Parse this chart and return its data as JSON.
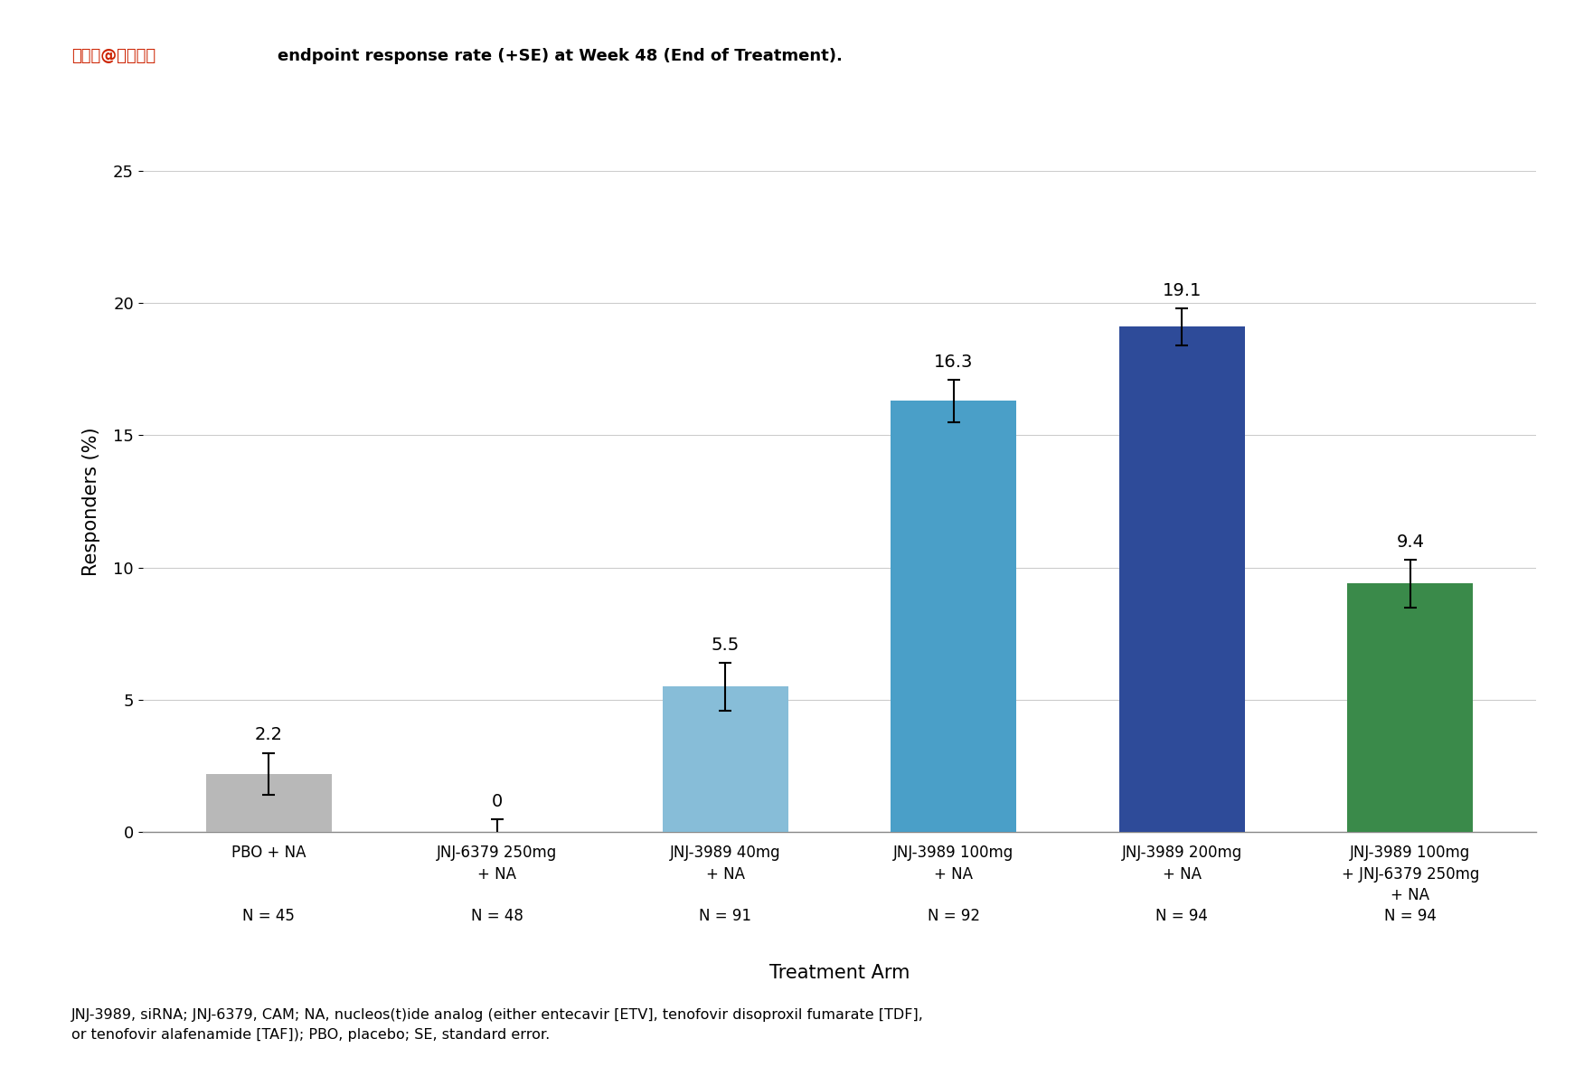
{
  "title": "endpoint response rate (+SE) at Week 48 (End of Treatment).",
  "title_prefix": "搜狐号@小香健康",
  "categories": [
    "PBO + NA",
    "JNJ-6379 250mg\n+ NA",
    "JNJ-3989 40mg\n+ NA",
    "JNJ-3989 100mg\n+ NA",
    "JNJ-3989 200mg\n+ NA",
    "JNJ-3989 100mg\n+ JNJ-6379 250mg\n+ NA"
  ],
  "values": [
    2.2,
    0.0,
    5.5,
    16.3,
    19.1,
    9.4
  ],
  "errors": [
    0.8,
    0.5,
    0.9,
    0.8,
    0.7,
    0.9
  ],
  "bar_colors": [
    "#b8b8b8",
    "#b8b8b8",
    "#87bdd8",
    "#4a9fc8",
    "#2e4b99",
    "#3a8a4a"
  ],
  "n_values": [
    "N = 45",
    "N = 48",
    "N = 91",
    "N = 92",
    "N = 94",
    "N = 94"
  ],
  "ylabel": "Responders (%)",
  "xlabel": "Treatment Arm",
  "ylim": [
    0,
    25
  ],
  "yticks": [
    0,
    5,
    10,
    15,
    20,
    25
  ],
  "footnote": "JNJ-3989, siRNA; JNJ-6379, CAM; NA, nucleos(t)ide analog (either entecavir [ETV], tenofovir disoproxil fumarate [TDF],\nor tenofovir alafenamide [TAF]); PBO, placebo; SE, standard error.",
  "background_color": "#ffffff",
  "grid_color": "#cccccc"
}
